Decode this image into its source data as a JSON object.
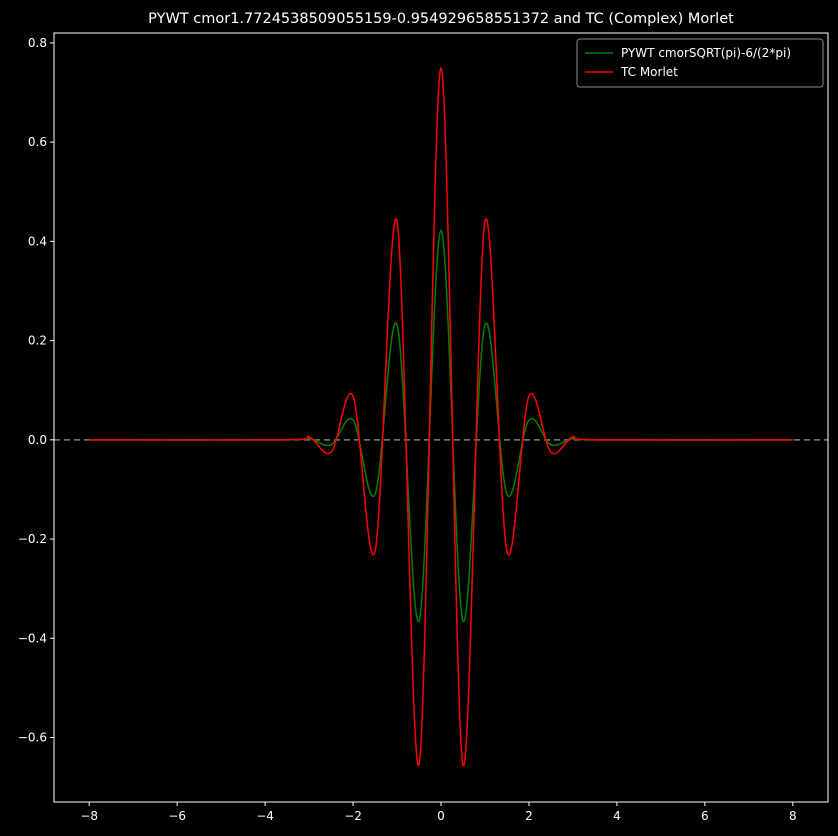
{
  "chart_data": {
    "type": "line",
    "title": "PYWT cmor1.7724538509055159-0.954929658551372 and TC (Complex) Morlet",
    "xlabel": "",
    "ylabel": "",
    "xlim": [
      -8.8,
      8.8
    ],
    "ylim": [
      -0.73,
      0.82
    ],
    "x_ticks": [
      -8,
      -6,
      -4,
      -2,
      0,
      2,
      4,
      6,
      8
    ],
    "y_ticks": [
      -0.6,
      -0.4,
      -0.2,
      0.0,
      0.2,
      0.4,
      0.6,
      0.8
    ],
    "x_tick_labels": [
      "−8",
      "−6",
      "−4",
      "−2",
      "0",
      "2",
      "4",
      "6",
      "8"
    ],
    "y_tick_labels": [
      "−0.6",
      "−0.4",
      "−0.2",
      "0.0",
      "0.2",
      "0.4",
      "0.6",
      "0.8"
    ],
    "grid": false,
    "legend_position": "upper-right",
    "reference_line": {
      "y": 0,
      "style": "dashed",
      "color": "#808080"
    },
    "series": [
      {
        "name": "PYWT cmorSQRT(pi)-6/(2*pi)",
        "color": "#008000",
        "x": [
          -8,
          -3.5,
          -3.0,
          -2.5,
          -2.0,
          -1.5,
          -1.0,
          -0.5,
          0.0,
          0.5,
          1.0,
          1.5,
          2.0,
          2.5,
          3.0,
          3.5,
          8
        ],
        "y": [
          0.0,
          0.0,
          0.003,
          -0.01,
          0.04,
          -0.11,
          0.232,
          -0.365,
          0.423,
          -0.365,
          0.232,
          -0.11,
          0.04,
          -0.01,
          0.003,
          0.0,
          0.0
        ]
      },
      {
        "name": "TC Morlet",
        "color": "#ff0000",
        "x": [
          -8,
          -3.5,
          -3.0,
          -2.5,
          -2.0,
          -1.5,
          -1.0,
          -0.5,
          0.0,
          0.5,
          1.0,
          1.5,
          2.0,
          2.5,
          3.0,
          3.5,
          8
        ],
        "y": [
          0.0,
          0.0,
          0.006,
          -0.025,
          0.088,
          -0.225,
          0.44,
          -0.655,
          0.75,
          -0.655,
          0.44,
          -0.225,
          0.088,
          -0.025,
          0.006,
          0.0,
          0.0
        ]
      }
    ]
  },
  "style": {
    "background": "#000000",
    "axes_color": "#ffffff",
    "text_color": "#ffffff",
    "legend_border": "#8c8c8c"
  }
}
